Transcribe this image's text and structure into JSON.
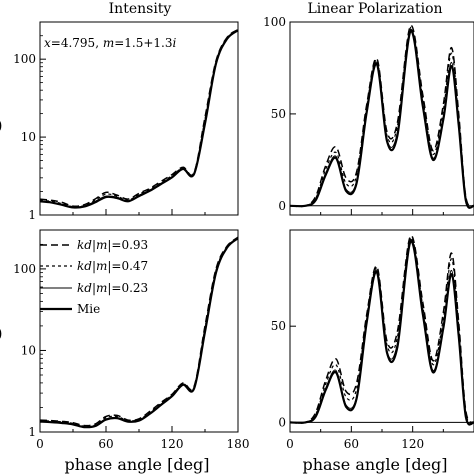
{
  "chart_data": [
    {
      "id": "intensity_top",
      "type": "line",
      "title": "Intensity",
      "xlabel": "",
      "ylabel": "",
      "xlim": [
        0,
        180
      ],
      "ylim": [
        1,
        300
      ],
      "yscale": "log",
      "yticks": [
        1,
        10,
        100
      ],
      "ytick_labels": [
        "1",
        "10",
        "100"
      ],
      "annotation": {
        "x_label": "x",
        "x_value": "=4.795, ",
        "m_label": "m",
        "m_value": "=1.5+1.3",
        "i_label": "i"
      },
      "series": [
        {
          "style": "long-dash",
          "x": [
            0,
            10,
            20,
            30,
            40,
            50,
            60,
            70,
            80,
            90,
            100,
            110,
            120,
            130,
            140,
            150,
            160,
            170,
            180
          ],
          "y": [
            1.6,
            1.55,
            1.45,
            1.3,
            1.35,
            1.6,
            1.95,
            1.8,
            1.6,
            1.9,
            2.2,
            2.7,
            3.3,
            4.1,
            3.5,
            18,
            95,
            190,
            240
          ]
        },
        {
          "style": "short-dash",
          "x": [
            0,
            10,
            20,
            30,
            40,
            50,
            60,
            70,
            80,
            90,
            100,
            110,
            120,
            130,
            140,
            150,
            160,
            170,
            180
          ],
          "y": [
            1.55,
            1.5,
            1.4,
            1.28,
            1.32,
            1.55,
            1.85,
            1.75,
            1.55,
            1.85,
            2.15,
            2.6,
            3.2,
            4.0,
            3.45,
            17,
            92,
            188,
            238
          ]
        },
        {
          "style": "thin",
          "x": [
            0,
            10,
            20,
            30,
            40,
            50,
            60,
            70,
            80,
            90,
            100,
            110,
            120,
            130,
            140,
            150,
            160,
            170,
            180
          ],
          "y": [
            1.5,
            1.45,
            1.35,
            1.25,
            1.3,
            1.5,
            1.75,
            1.7,
            1.5,
            1.8,
            2.1,
            2.55,
            3.1,
            3.95,
            3.4,
            16,
            90,
            185,
            236
          ]
        },
        {
          "style": "thick",
          "x": [
            0,
            10,
            20,
            30,
            40,
            50,
            60,
            70,
            80,
            90,
            100,
            110,
            120,
            130,
            140,
            150,
            160,
            170,
            180
          ],
          "y": [
            1.5,
            1.45,
            1.35,
            1.25,
            1.28,
            1.45,
            1.7,
            1.65,
            1.5,
            1.75,
            2.05,
            2.5,
            3.05,
            3.9,
            3.35,
            15,
            88,
            182,
            235
          ]
        }
      ]
    },
    {
      "id": "polarization_top",
      "type": "line",
      "title": "Linear Polarization",
      "xlabel": "",
      "ylabel": "",
      "xlim": [
        0,
        180
      ],
      "ylim": [
        -5,
        100
      ],
      "yticks": [
        0,
        50,
        100
      ],
      "ytick_labels": [
        "0",
        "50",
        "100"
      ],
      "series": [
        {
          "style": "long-dash",
          "x": [
            0,
            15,
            25,
            35,
            45,
            55,
            65,
            75,
            85,
            95,
            105,
            118,
            130,
            140,
            150,
            158,
            165,
            172,
            180
          ],
          "y": [
            0,
            0,
            5,
            22,
            32,
            15,
            18,
            55,
            80,
            40,
            45,
            98,
            60,
            30,
            55,
            86,
            50,
            5,
            0
          ]
        },
        {
          "style": "short-dash",
          "x": [
            0,
            15,
            25,
            35,
            45,
            55,
            65,
            75,
            85,
            95,
            105,
            118,
            130,
            140,
            150,
            158,
            165,
            172,
            180
          ],
          "y": [
            0,
            0,
            4,
            20,
            29,
            12,
            16,
            54,
            79,
            38,
            43,
            97,
            58,
            28,
            52,
            83,
            48,
            4,
            0
          ]
        },
        {
          "style": "thin",
          "x": [
            0,
            15,
            25,
            35,
            45,
            55,
            65,
            75,
            85,
            95,
            105,
            118,
            130,
            140,
            150,
            158,
            165,
            172,
            180
          ],
          "y": [
            0,
            0,
            3,
            18,
            27,
            9,
            13,
            52,
            78,
            36,
            40,
            96,
            55,
            26,
            48,
            78,
            45,
            3,
            0
          ]
        },
        {
          "style": "thick",
          "x": [
            0,
            15,
            25,
            35,
            45,
            55,
            65,
            75,
            85,
            95,
            105,
            118,
            130,
            140,
            150,
            158,
            165,
            172,
            180
          ],
          "y": [
            0,
            0,
            3,
            17,
            26,
            8,
            12,
            51,
            77,
            35,
            38,
            95,
            54,
            25,
            47,
            76,
            44,
            3,
            0
          ]
        }
      ]
    },
    {
      "id": "intensity_bottom",
      "type": "line",
      "title": "",
      "xlabel": "phase angle [deg]",
      "ylabel": "",
      "xlim": [
        0,
        180
      ],
      "ylim": [
        1,
        300
      ],
      "yscale": "log",
      "xticks": [
        0,
        60,
        120,
        180
      ],
      "xtick_labels": [
        "0",
        "60",
        "120",
        "180"
      ],
      "yticks": [
        1,
        10,
        100
      ],
      "ytick_labels": [
        "1",
        "10",
        "100"
      ],
      "legend": {
        "position": "top-left",
        "entries": [
          {
            "style": "long-dash",
            "prefix": "kd",
            "mid": "|m|",
            "value": "=0.93"
          },
          {
            "style": "short-dash",
            "prefix": "kd",
            "mid": "|m|",
            "value": "=0.47"
          },
          {
            "style": "thin",
            "prefix": "kd",
            "mid": "|m|",
            "value": "=0.23"
          },
          {
            "style": "thick",
            "label": "Mie"
          }
        ]
      },
      "series": [
        {
          "style": "long-dash",
          "x": [
            0,
            10,
            20,
            30,
            40,
            50,
            60,
            70,
            80,
            90,
            100,
            110,
            120,
            130,
            140,
            150,
            160,
            170,
            180
          ],
          "y": [
            1.4,
            1.38,
            1.35,
            1.3,
            1.2,
            1.25,
            1.55,
            1.6,
            1.4,
            1.45,
            1.8,
            2.3,
            2.9,
            4.0,
            3.6,
            20,
            100,
            190,
            245
          ]
        },
        {
          "style": "short-dash",
          "x": [
            0,
            10,
            20,
            30,
            40,
            50,
            60,
            70,
            80,
            90,
            100,
            110,
            120,
            130,
            140,
            150,
            160,
            170,
            180
          ],
          "y": [
            1.38,
            1.36,
            1.33,
            1.28,
            1.18,
            1.22,
            1.5,
            1.55,
            1.38,
            1.42,
            1.75,
            2.25,
            2.85,
            3.9,
            3.5,
            19,
            96,
            188,
            242
          ]
        },
        {
          "style": "thin",
          "x": [
            0,
            10,
            20,
            30,
            40,
            50,
            60,
            70,
            80,
            90,
            100,
            110,
            120,
            130,
            140,
            150,
            160,
            170,
            180
          ],
          "y": [
            1.35,
            1.33,
            1.3,
            1.25,
            1.16,
            1.2,
            1.45,
            1.5,
            1.35,
            1.4,
            1.7,
            2.2,
            2.8,
            3.85,
            3.45,
            18,
            93,
            185,
            240
          ]
        },
        {
          "style": "thick",
          "x": [
            0,
            10,
            20,
            30,
            40,
            50,
            60,
            70,
            80,
            90,
            100,
            110,
            120,
            130,
            140,
            150,
            160,
            170,
            180
          ],
          "y": [
            1.34,
            1.32,
            1.29,
            1.24,
            1.15,
            1.18,
            1.42,
            1.48,
            1.34,
            1.38,
            1.68,
            2.15,
            2.75,
            3.8,
            3.4,
            17,
            90,
            182,
            238
          ]
        }
      ]
    },
    {
      "id": "polarization_bottom",
      "type": "line",
      "title": "",
      "xlabel": "phase angle [deg]",
      "ylabel": "",
      "xlim": [
        0,
        180
      ],
      "ylim": [
        -5,
        100
      ],
      "xticks": [
        0,
        60,
        120
      ],
      "xtick_labels": [
        "0",
        "60",
        "120"
      ],
      "yticks": [
        0,
        50
      ],
      "ytick_labels": [
        "0",
        "50"
      ],
      "series": [
        {
          "style": "long-dash",
          "x": [
            0,
            15,
            25,
            35,
            45,
            55,
            65,
            75,
            85,
            95,
            105,
            118,
            130,
            140,
            150,
            158,
            165,
            172,
            180
          ],
          "y": [
            0,
            0,
            5,
            22,
            33,
            16,
            20,
            56,
            81,
            42,
            47,
            97,
            62,
            32,
            57,
            88,
            52,
            6,
            0
          ]
        },
        {
          "style": "short-dash",
          "x": [
            0,
            15,
            25,
            35,
            45,
            55,
            65,
            75,
            85,
            95,
            105,
            118,
            130,
            140,
            150,
            158,
            165,
            172,
            180
          ],
          "y": [
            0,
            0,
            4,
            20,
            30,
            13,
            17,
            55,
            80,
            40,
            44,
            96,
            60,
            30,
            54,
            85,
            50,
            5,
            0
          ]
        },
        {
          "style": "thin",
          "x": [
            0,
            15,
            25,
            35,
            45,
            55,
            65,
            75,
            85,
            95,
            105,
            118,
            130,
            140,
            150,
            158,
            165,
            172,
            180
          ],
          "y": [
            0,
            0,
            3,
            18,
            27,
            9,
            13,
            53,
            79,
            37,
            41,
            95,
            57,
            27,
            50,
            79,
            46,
            3,
            0
          ]
        },
        {
          "style": "thick",
          "x": [
            0,
            15,
            25,
            35,
            45,
            55,
            65,
            75,
            85,
            95,
            105,
            118,
            130,
            140,
            150,
            158,
            165,
            172,
            180
          ],
          "y": [
            0,
            0,
            3,
            17,
            26,
            8,
            12,
            52,
            78,
            36,
            39,
            94,
            56,
            26,
            49,
            77,
            45,
            3,
            0
          ]
        }
      ]
    }
  ]
}
